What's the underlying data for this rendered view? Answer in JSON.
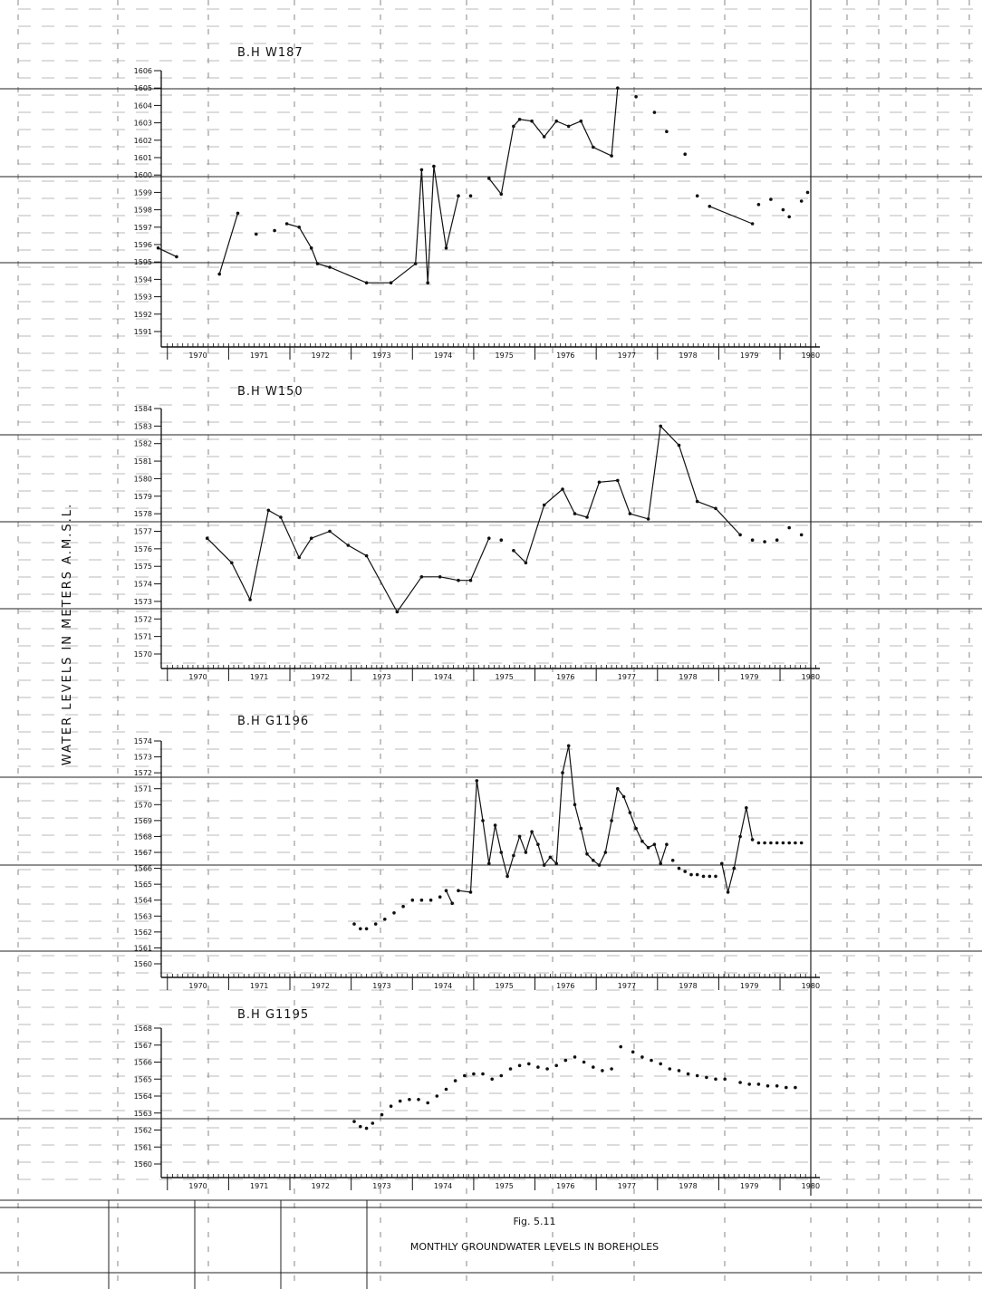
{
  "y_axis_title": "WATER LEVELS IN METERS A.M.S.L.",
  "caption": {
    "fig": "Fig. 5.11",
    "title": "MONTHLY GROUNDWATER LEVELS IN BOREHOLES"
  },
  "chart_data": [
    {
      "type": "line",
      "title": "B.H W187",
      "ylim": [
        1591,
        1606
      ],
      "yticks": [
        "1606",
        "1605",
        "1604",
        "1603",
        "1602",
        "1601",
        "1600",
        "1599",
        "1598",
        "1597",
        "1596",
        "1595",
        "1594",
        "1593",
        "1592",
        "1591"
      ],
      "xticks": [
        "1970",
        "1971",
        "1972",
        "1973",
        "1974",
        "1975",
        "1976",
        "1977",
        "1978",
        "1979",
        "1980"
      ],
      "series": [
        {
          "x": [
            1969.8,
            1970.1,
            1970.8,
            1971.1,
            1971.4,
            1971.7,
            1971.9,
            1972.1,
            1972.3,
            1972.4,
            1972.6,
            1973.2,
            1973.6,
            1974.0,
            1974.1,
            1974.2,
            1974.3,
            1974.5,
            1974.7,
            1974.9,
            1975.2,
            1975.4,
            1975.6,
            1975.7,
            1975.9,
            1976.1,
            1976.3,
            1976.5,
            1976.7,
            1976.9,
            1977.2,
            1977.3,
            1977.6,
            1977.9,
            1978.1,
            1978.4,
            1978.6,
            1978.8,
            1979.5,
            1979.6,
            1979.8,
            1980.0,
            1980.1,
            1980.3,
            1980.4
          ],
          "values": [
            1595.8,
            1595.3,
            1594.3,
            1597.8,
            1596.6,
            1596.8,
            1597.2,
            1597.0,
            1595.8,
            1594.9,
            1594.7,
            1593.8,
            1593.8,
            1594.9,
            1600.3,
            1593.8,
            1600.5,
            1595.8,
            1598.8,
            1598.8,
            1599.8,
            1598.9,
            1602.8,
            1603.2,
            1603.1,
            1602.2,
            1603.1,
            1602.8,
            1603.1,
            1601.6,
            1601.1,
            1605.0,
            1604.5,
            1603.6,
            1602.5,
            1601.2,
            1598.8,
            1598.2,
            1597.2,
            1598.3,
            1598.6,
            1598.0,
            1597.6,
            1598.5,
            1599.0
          ],
          "break_before": [
            2,
            4,
            5,
            6,
            19,
            20,
            32,
            33,
            34,
            35,
            36,
            37,
            39,
            40,
            41,
            42,
            43,
            44
          ]
        }
      ]
    },
    {
      "type": "line",
      "title": "B.H W150",
      "ylim": [
        1570,
        1584
      ],
      "yticks": [
        "1584",
        "1583",
        "1582",
        "1581",
        "1580",
        "1579",
        "1578",
        "1577",
        "1576",
        "1575",
        "1574",
        "1573",
        "1572",
        "1571",
        "1570"
      ],
      "xticks": [
        "1970",
        "1971",
        "1972",
        "1973",
        "1974",
        "1975",
        "1976",
        "1977",
        "1978",
        "1979",
        "1980"
      ],
      "series": [
        {
          "x": [
            1970.6,
            1971.0,
            1971.3,
            1971.6,
            1971.8,
            1972.1,
            1972.3,
            1972.6,
            1972.9,
            1973.2,
            1973.7,
            1974.1,
            1974.4,
            1974.7,
            1974.9,
            1975.2,
            1975.4,
            1975.6,
            1975.8,
            1976.1,
            1976.4,
            1976.6,
            1976.8,
            1977.0,
            1977.3,
            1977.5,
            1977.8,
            1978.0,
            1978.3,
            1978.6,
            1978.9,
            1979.3,
            1979.5,
            1979.7,
            1979.9,
            1980.1,
            1980.3
          ],
          "values": [
            1576.6,
            1575.2,
            1573.1,
            1578.2,
            1577.8,
            1575.5,
            1576.6,
            1577.0,
            1576.2,
            1575.6,
            1572.4,
            1574.4,
            1574.4,
            1574.2,
            1574.2,
            1576.6,
            1576.5,
            1575.9,
            1575.2,
            1578.5,
            1579.4,
            1578.0,
            1577.8,
            1579.8,
            1579.9,
            1578.0,
            1577.7,
            1583.0,
            1581.9,
            1578.7,
            1578.3,
            1576.8,
            1576.5,
            1576.4,
            1576.5,
            1577.2,
            1576.8
          ],
          "break_before": [
            16,
            17,
            32,
            33,
            34,
            35,
            36
          ]
        }
      ]
    },
    {
      "type": "line",
      "title": "B.H G1196",
      "ylim": [
        1560,
        1574
      ],
      "yticks": [
        "1574",
        "1573",
        "1572",
        "1571",
        "1570",
        "1569",
        "1568",
        "1567",
        "1566",
        "1565",
        "1564",
        "1563",
        "1562",
        "1561",
        "1560"
      ],
      "xticks": [
        "1970",
        "1971",
        "1972",
        "1973",
        "1974",
        "1975",
        "1976",
        "1977",
        "1978",
        "1979",
        "1980"
      ],
      "series": [
        {
          "x": [
            1973.0,
            1973.1,
            1973.2,
            1973.35,
            1973.5,
            1973.65,
            1973.8,
            1973.95,
            1974.1,
            1974.25,
            1974.4,
            1974.5,
            1974.6,
            1974.7,
            1974.9,
            1975.0,
            1975.1,
            1975.2,
            1975.3,
            1975.4,
            1975.5,
            1975.6,
            1975.7,
            1975.8,
            1975.9,
            1976.0,
            1976.1,
            1976.2,
            1976.3,
            1976.4,
            1976.5,
            1976.6,
            1976.7,
            1976.8,
            1976.9,
            1977.0,
            1977.1,
            1977.2,
            1977.3,
            1977.4,
            1977.5,
            1977.6,
            1977.7,
            1977.8,
            1977.9,
            1978.0,
            1978.1,
            1978.2,
            1978.3,
            1978.4,
            1978.5,
            1978.6,
            1978.7,
            1978.8,
            1978.9,
            1979.0,
            1979.1,
            1979.2,
            1979.3,
            1979.4,
            1979.5,
            1979.6,
            1979.7,
            1979.8,
            1979.9,
            1980.0,
            1980.1,
            1980.2,
            1980.3
          ],
          "values": [
            1562.5,
            1562.2,
            1562.2,
            1562.5,
            1562.8,
            1563.2,
            1563.6,
            1564.0,
            1564.0,
            1564.0,
            1564.2,
            1564.6,
            1563.8,
            1564.6,
            1564.5,
            1571.5,
            1569.0,
            1566.3,
            1568.7,
            1567.0,
            1565.5,
            1566.8,
            1568.0,
            1567.0,
            1568.3,
            1567.5,
            1566.2,
            1566.7,
            1566.3,
            1572.0,
            1573.7,
            1570.0,
            1568.5,
            1566.9,
            1566.5,
            1566.2,
            1567.0,
            1569.0,
            1571.0,
            1570.5,
            1569.5,
            1568.5,
            1567.7,
            1567.3,
            1567.5,
            1566.3,
            1567.5,
            1566.5,
            1566.0,
            1565.8,
            1565.6,
            1565.6,
            1565.5,
            1565.5,
            1565.5,
            1566.3,
            1564.5,
            1566.0,
            1568.0,
            1569.8,
            1567.8,
            1567.6,
            1567.6,
            1567.6,
            1567.6,
            1567.6,
            1567.6,
            1567.6,
            1567.6
          ],
          "break_before": [
            1,
            2,
            3,
            4,
            5,
            6,
            7,
            8,
            9,
            10,
            11,
            13,
            47,
            48,
            49,
            50,
            51,
            52,
            53,
            54,
            55,
            61,
            62,
            63,
            64,
            65,
            66,
            67,
            68
          ]
        }
      ]
    },
    {
      "type": "scatter",
      "title": "B.H G1195",
      "ylim": [
        1560,
        1568
      ],
      "yticks": [
        "1568",
        "1567",
        "1566",
        "1565",
        "1564",
        "1563",
        "1562",
        "1561",
        "1560"
      ],
      "xticks": [
        "1970",
        "1971",
        "1972",
        "1973",
        "1974",
        "1975",
        "1976",
        "1977",
        "1978",
        "1979",
        "1980"
      ],
      "series": [
        {
          "x": [
            1973.0,
            1973.1,
            1973.2,
            1973.3,
            1973.45,
            1973.6,
            1973.75,
            1973.9,
            1974.05,
            1974.2,
            1974.35,
            1974.5,
            1974.65,
            1974.8,
            1974.95,
            1975.1,
            1975.25,
            1975.4,
            1975.55,
            1975.7,
            1975.85,
            1976.0,
            1976.15,
            1976.3,
            1976.45,
            1976.6,
            1976.75,
            1976.9,
            1977.05,
            1977.2,
            1977.35,
            1977.55,
            1977.7,
            1977.85,
            1978.0,
            1978.15,
            1978.3,
            1978.45,
            1978.6,
            1978.75,
            1978.9,
            1979.05,
            1979.3,
            1979.45,
            1979.6,
            1979.75,
            1979.9,
            1980.05,
            1980.2
          ],
          "values": [
            1562.5,
            1562.2,
            1562.1,
            1562.4,
            1562.9,
            1563.4,
            1563.7,
            1563.8,
            1563.8,
            1563.6,
            1564.0,
            1564.4,
            1564.9,
            1565.2,
            1565.3,
            1565.3,
            1565.0,
            1565.2,
            1565.6,
            1565.8,
            1565.9,
            1565.7,
            1565.6,
            1565.8,
            1566.1,
            1566.3,
            1566.0,
            1565.7,
            1565.5,
            1565.6,
            1566.9,
            1566.6,
            1566.3,
            1566.1,
            1565.9,
            1565.6,
            1565.5,
            1565.3,
            1565.2,
            1565.1,
            1565.0,
            1565.0,
            1564.8,
            1564.7,
            1564.7,
            1564.6,
            1564.6,
            1564.5,
            1564.5
          ]
        }
      ]
    }
  ]
}
